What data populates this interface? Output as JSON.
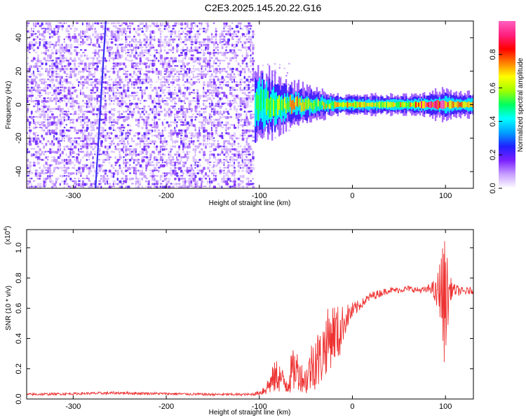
{
  "title": "C2E3.2025.145.20.22.G16",
  "chart_data": [
    {
      "type": "heatmap",
      "name": "spectrogram",
      "xlabel": "Height of straight line (km)",
      "ylabel": "Frequency (Hz)",
      "xlim": [
        -350,
        130
      ],
      "ylim": [
        -50,
        50
      ],
      "xticks": [
        -300,
        -200,
        -100,
        0,
        100
      ],
      "yticks": [
        -40,
        -20,
        0,
        20,
        40
      ],
      "xtick_labels": [
        "-300",
        "-200",
        "-100",
        "0",
        "100"
      ],
      "ytick_labels": [
        "-40",
        "-20",
        "0",
        "20",
        "40"
      ],
      "noise_region_x": [
        -350,
        -108
      ],
      "vertical_streak": {
        "x_top": -265,
        "x_bottom": -276
      },
      "ridge": [
        {
          "x": -105,
          "spread": 10,
          "amp": 0.45
        },
        {
          "x": -90,
          "spread": 8,
          "amp": 0.55
        },
        {
          "x": -75,
          "spread": 6,
          "amp": 0.6
        },
        {
          "x": -60,
          "spread": 5,
          "amp": 0.65
        },
        {
          "x": -45,
          "spread": 4,
          "amp": 0.6
        },
        {
          "x": -30,
          "spread": 3,
          "amp": 0.6
        },
        {
          "x": -15,
          "spread": 2.5,
          "amp": 0.65
        },
        {
          "x": 0,
          "spread": 2.5,
          "amp": 0.65
        },
        {
          "x": 30,
          "spread": 2.5,
          "amp": 0.6
        },
        {
          "x": 60,
          "spread": 2.5,
          "amp": 0.65
        },
        {
          "x": 80,
          "spread": 3,
          "amp": 0.9
        },
        {
          "x": 95,
          "spread": 4,
          "amp": 0.85
        },
        {
          "x": 110,
          "spread": 3,
          "amp": 0.65
        },
        {
          "x": 130,
          "spread": 3,
          "amp": 0.7
        }
      ],
      "colorbar": {
        "label": "Normalized spectral amplitude",
        "range": [
          0,
          1
        ],
        "ticks": [
          0.0,
          0.2,
          0.4,
          0.6,
          0.8
        ],
        "tick_labels": [
          "0.0",
          "0.2",
          "0.4",
          "0.6",
          "0.8"
        ],
        "colors": [
          "#ffffff",
          "#c8a0ff",
          "#7a20ff",
          "#2020ff",
          "#00a0ff",
          "#00ffff",
          "#00ff60",
          "#a0ff00",
          "#ffff00",
          "#ff8000",
          "#ff0000",
          "#ff2080",
          "#ff60c0"
        ]
      }
    },
    {
      "type": "line",
      "name": "snr",
      "xlabel": "Height of straight line (km)",
      "ylabel": "SNR (10 * v/v)",
      "scale_label": "(x10",
      "scale_exp": "4",
      "scale_close": ")",
      "xlim": [
        -350,
        130
      ],
      "ylim": [
        0.0,
        1.12
      ],
      "xticks": [
        -300,
        -200,
        -100,
        0,
        100
      ],
      "yticks": [
        0.0,
        0.2,
        0.4,
        0.6,
        0.8,
        1.0
      ],
      "xtick_labels": [
        "-300",
        "-200",
        "-100",
        "0",
        "100"
      ],
      "ytick_labels": [
        "0.0",
        "0.2",
        "0.4",
        "0.6",
        "0.8",
        "1.0"
      ],
      "color": "#ee3333",
      "series": [
        {
          "name": "SNR",
          "x": [
            -350,
            -300,
            -250,
            -200,
            -150,
            -110,
            -100,
            -95,
            -90,
            -85,
            -80,
            -75,
            -70,
            -65,
            -60,
            -55,
            -50,
            -45,
            -40,
            -35,
            -30,
            -25,
            -20,
            -15,
            -10,
            -5,
            0,
            10,
            20,
            30,
            40,
            50,
            60,
            70,
            80,
            85,
            90,
            95,
            98,
            100,
            102,
            105,
            110,
            120,
            130
          ],
          "y": [
            0.03,
            0.035,
            0.04,
            0.035,
            0.03,
            0.03,
            0.04,
            0.06,
            0.09,
            0.13,
            0.16,
            0.12,
            0.1,
            0.18,
            0.2,
            0.15,
            0.12,
            0.2,
            0.28,
            0.25,
            0.35,
            0.4,
            0.45,
            0.42,
            0.5,
            0.55,
            0.58,
            0.63,
            0.68,
            0.7,
            0.72,
            0.72,
            0.73,
            0.72,
            0.72,
            0.74,
            0.68,
            0.75,
            0.6,
            0.72,
            0.65,
            0.73,
            0.72,
            0.71,
            0.72
          ],
          "noise": [
            0.008,
            0.008,
            0.01,
            0.008,
            0.008,
            0.008,
            0.015,
            0.04,
            0.06,
            0.1,
            0.12,
            0.08,
            0.08,
            0.14,
            0.14,
            0.1,
            0.1,
            0.16,
            0.22,
            0.2,
            0.2,
            0.22,
            0.2,
            0.2,
            0.12,
            0.08,
            0.06,
            0.03,
            0.03,
            0.025,
            0.02,
            0.02,
            0.02,
            0.02,
            0.025,
            0.04,
            0.1,
            0.22,
            0.45,
            0.38,
            0.3,
            0.08,
            0.04,
            0.025,
            0.025
          ]
        }
      ]
    }
  ]
}
